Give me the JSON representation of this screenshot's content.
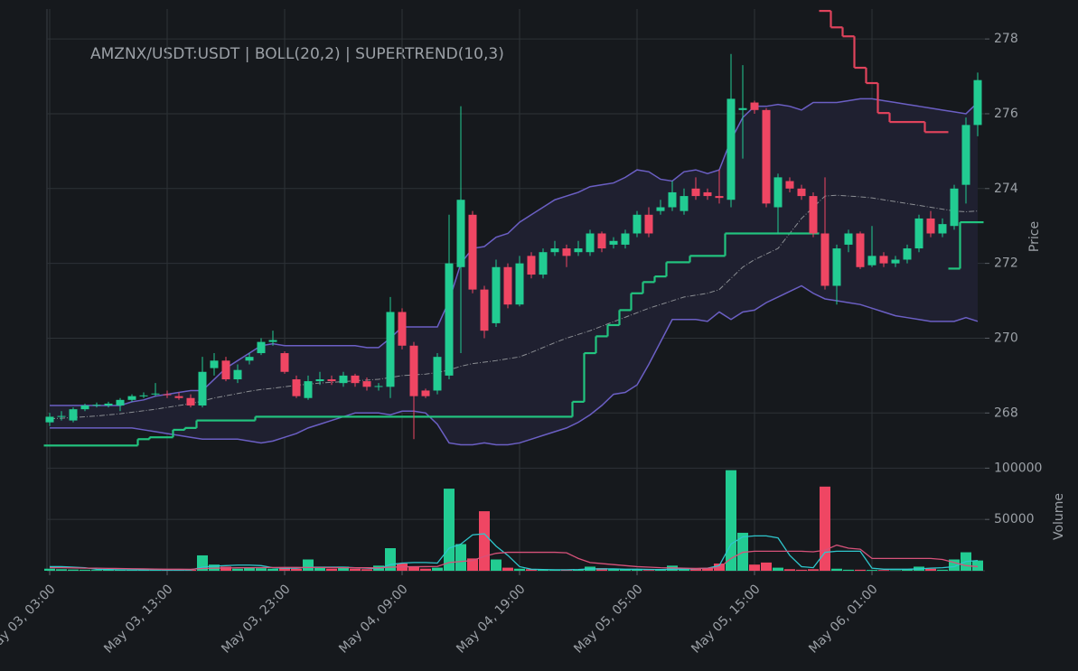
{
  "chart_data": {
    "type": "candlestick",
    "title": "AMZNX/USDT:USDT | BOLL(20,2) | SUPERTREND(10,3)",
    "x": [
      "May 03, 03:00",
      "May 03, 04:00",
      "May 03, 05:00",
      "May 03, 06:00",
      "May 03, 07:00",
      "May 03, 08:00",
      "May 03, 09:00",
      "May 03, 10:00",
      "May 03, 11:00",
      "May 03, 12:00",
      "May 03, 13:00",
      "May 03, 14:00",
      "May 03, 15:00",
      "May 03, 16:00",
      "May 03, 17:00",
      "May 03, 18:00",
      "May 03, 19:00",
      "May 03, 20:00",
      "May 03, 21:00",
      "May 03, 22:00",
      "May 03, 23:00",
      "May 04, 00:00",
      "May 04, 01:00",
      "May 04, 02:00",
      "May 04, 03:00",
      "May 04, 04:00",
      "May 04, 05:00",
      "May 04, 06:00",
      "May 04, 07:00",
      "May 04, 08:00",
      "May 04, 09:00",
      "May 04, 10:00",
      "May 04, 11:00",
      "May 04, 12:00",
      "May 04, 13:00",
      "May 04, 14:00",
      "May 04, 15:00",
      "May 04, 16:00",
      "May 04, 17:00",
      "May 04, 18:00",
      "May 04, 19:00",
      "May 04, 20:00",
      "May 04, 21:00",
      "May 04, 22:00",
      "May 04, 23:00",
      "May 05, 00:00",
      "May 05, 01:00",
      "May 05, 02:00",
      "May 05, 03:00",
      "May 05, 04:00",
      "May 05, 05:00",
      "May 05, 06:00",
      "May 05, 07:00",
      "May 05, 08:00",
      "May 05, 09:00",
      "May 05, 10:00",
      "May 05, 11:00",
      "May 05, 12:00",
      "May 05, 13:00",
      "May 05, 14:00",
      "May 05, 15:00",
      "May 05, 16:00",
      "May 05, 17:00",
      "May 05, 18:00",
      "May 05, 19:00",
      "May 05, 20:00",
      "May 05, 21:00",
      "May 05, 22:00",
      "May 05, 23:00",
      "May 06, 00:00",
      "May 06, 01:00",
      "May 06, 02:00",
      "May 06, 03:00",
      "May 06, 04:00",
      "May 06, 05:00",
      "May 06, 06:00",
      "May 06, 07:00",
      "May 06, 08:00",
      "May 06, 09:00",
      "May 06, 10:00"
    ],
    "xticks": [
      "May 03, 03:00",
      "May 03, 13:00",
      "May 03, 23:00",
      "May 04, 09:00",
      "May 04, 19:00",
      "May 05, 05:00",
      "May 05, 15:00",
      "May 06, 01:00"
    ],
    "candles": {
      "open": [
        267.75,
        267.9,
        267.8,
        268.1,
        268.2,
        268.2,
        268.2,
        268.35,
        268.45,
        268.5,
        268.5,
        268.45,
        268.4,
        268.2,
        269.2,
        269.4,
        268.9,
        269.4,
        269.6,
        269.9,
        269.6,
        268.9,
        268.4,
        268.85,
        268.9,
        268.8,
        269.0,
        268.85,
        268.7,
        268.7,
        270.7,
        269.8,
        268.6,
        268.6,
        269.0,
        271.9,
        273.3,
        271.3,
        270.4,
        271.9,
        270.9,
        272.2,
        271.7,
        272.3,
        272.4,
        272.3,
        272.3,
        272.8,
        272.5,
        272.5,
        272.8,
        273.3,
        273.4,
        273.5,
        273.4,
        274.0,
        273.9,
        273.8,
        273.7,
        276.1,
        276.3,
        276.1,
        273.5,
        274.2,
        274.0,
        273.8,
        272.8,
        271.4,
        272.5,
        272.8,
        271.95,
        272.2,
        272.0,
        272.1,
        272.4,
        273.2,
        272.8,
        273.0,
        274.1,
        275.7
      ],
      "high": [
        268.0,
        268.05,
        268.15,
        268.25,
        268.28,
        268.3,
        268.4,
        268.5,
        268.55,
        268.8,
        268.6,
        268.55,
        268.5,
        269.5,
        269.6,
        269.5,
        269.3,
        269.6,
        270.0,
        270.2,
        269.65,
        269.0,
        269.0,
        269.1,
        269.0,
        269.1,
        269.05,
        268.95,
        268.8,
        271.1,
        270.8,
        269.9,
        268.65,
        269.6,
        273.3,
        276.2,
        273.4,
        271.4,
        272.1,
        272.0,
        272.2,
        272.3,
        272.4,
        272.6,
        272.5,
        272.6,
        272.9,
        272.85,
        272.7,
        272.9,
        273.4,
        273.5,
        273.7,
        274.2,
        274.0,
        274.3,
        274.0,
        274.5,
        277.6,
        277.3,
        276.35,
        276.15,
        274.4,
        274.3,
        274.1,
        273.9,
        274.3,
        272.5,
        272.9,
        272.85,
        273.0,
        272.3,
        272.2,
        272.5,
        273.3,
        273.4,
        273.2,
        274.1,
        275.9,
        277.1
      ],
      "low": [
        267.65,
        267.8,
        267.75,
        268.05,
        268.15,
        268.15,
        268.05,
        268.3,
        268.4,
        268.45,
        268.4,
        268.35,
        268.15,
        268.15,
        269.0,
        268.85,
        268.8,
        269.3,
        269.55,
        269.8,
        269.05,
        268.4,
        268.35,
        268.75,
        268.75,
        268.7,
        268.7,
        268.6,
        268.6,
        268.4,
        269.7,
        267.3,
        268.4,
        268.5,
        268.9,
        269.6,
        271.2,
        270.0,
        270.3,
        270.8,
        270.85,
        271.6,
        271.6,
        272.2,
        271.9,
        272.2,
        272.2,
        272.3,
        272.4,
        272.4,
        272.7,
        272.7,
        273.3,
        273.4,
        273.3,
        273.7,
        273.7,
        273.6,
        273.5,
        274.8,
        276.0,
        273.5,
        272.8,
        273.9,
        273.7,
        272.7,
        271.3,
        270.9,
        272.3,
        271.85,
        271.9,
        271.9,
        271.9,
        272.0,
        272.3,
        272.7,
        272.7,
        272.9,
        273.6,
        275.4
      ],
      "close": [
        267.9,
        267.92,
        268.1,
        268.2,
        268.22,
        268.25,
        268.35,
        268.45,
        268.47,
        268.52,
        268.48,
        268.4,
        268.2,
        269.1,
        269.4,
        268.9,
        269.15,
        269.5,
        269.9,
        269.95,
        269.1,
        268.45,
        268.85,
        268.9,
        268.85,
        269.0,
        268.8,
        268.7,
        268.72,
        270.7,
        269.8,
        268.45,
        268.45,
        269.5,
        272.0,
        273.7,
        271.3,
        270.2,
        271.9,
        270.9,
        272.0,
        271.7,
        272.3,
        272.4,
        272.2,
        272.4,
        272.8,
        272.4,
        272.6,
        272.8,
        273.3,
        272.8,
        273.5,
        273.9,
        273.8,
        273.8,
        273.8,
        273.75,
        276.4,
        276.15,
        276.1,
        273.6,
        274.3,
        274.0,
        273.8,
        272.8,
        271.4,
        272.4,
        272.8,
        271.9,
        272.2,
        272.0,
        272.1,
        272.4,
        273.2,
        272.8,
        273.05,
        274.0,
        275.7,
        276.9
      ],
      "up_color": "#22cc92",
      "down_color": "#ef4663"
    },
    "ylim": [
      266.8,
      278.8
    ],
    "yticks": [
      268,
      270,
      272,
      274,
      276,
      278
    ],
    "ylabel": "Price",
    "bollinger": {
      "upper": [
        268.2,
        268.2,
        268.2,
        268.2,
        268.2,
        268.2,
        268.2,
        268.3,
        268.35,
        268.45,
        268.5,
        268.55,
        268.6,
        268.6,
        268.9,
        269.2,
        269.4,
        269.6,
        269.8,
        269.85,
        269.8,
        269.8,
        269.8,
        269.8,
        269.8,
        269.8,
        269.8,
        269.75,
        269.75,
        270.0,
        270.3,
        270.3,
        270.3,
        270.3,
        271.0,
        272.0,
        272.4,
        272.45,
        272.7,
        272.8,
        273.1,
        273.3,
        273.5,
        273.7,
        273.8,
        273.9,
        274.05,
        274.1,
        274.15,
        274.3,
        274.5,
        274.45,
        274.25,
        274.2,
        274.45,
        274.5,
        274.4,
        274.5,
        275.3,
        275.9,
        276.2,
        276.2,
        276.25,
        276.2,
        276.1,
        276.3,
        276.3,
        276.3,
        276.35,
        276.4,
        276.4,
        276.35,
        276.3,
        276.25,
        276.2,
        276.15,
        276.1,
        276.05,
        276.0,
        276.3
      ],
      "middle": [
        267.85,
        267.86,
        267.88,
        267.9,
        267.92,
        267.95,
        267.98,
        268.02,
        268.06,
        268.1,
        268.15,
        268.2,
        268.25,
        268.32,
        268.4,
        268.46,
        268.52,
        268.58,
        268.63,
        268.66,
        268.7,
        268.74,
        268.77,
        268.8,
        268.82,
        268.84,
        268.86,
        268.88,
        268.9,
        268.95,
        269.0,
        269.02,
        269.04,
        269.08,
        269.15,
        269.25,
        269.32,
        269.36,
        269.4,
        269.45,
        269.5,
        269.62,
        269.75,
        269.88,
        270.0,
        270.1,
        270.2,
        270.32,
        270.44,
        270.56,
        270.68,
        270.8,
        270.9,
        271.0,
        271.1,
        271.15,
        271.2,
        271.3,
        271.6,
        271.9,
        272.1,
        272.25,
        272.4,
        272.8,
        273.2,
        273.5,
        273.8,
        273.82,
        273.8,
        273.78,
        273.75,
        273.7,
        273.65,
        273.6,
        273.55,
        273.5,
        273.45,
        273.4,
        273.38,
        273.4
      ],
      "lower": [
        267.6,
        267.6,
        267.6,
        267.6,
        267.6,
        267.6,
        267.6,
        267.6,
        267.55,
        267.5,
        267.45,
        267.4,
        267.35,
        267.3,
        267.3,
        267.3,
        267.3,
        267.25,
        267.2,
        267.25,
        267.35,
        267.45,
        267.6,
        267.7,
        267.8,
        267.9,
        268.0,
        268.0,
        268.0,
        267.95,
        268.05,
        268.05,
        268.0,
        267.7,
        267.2,
        267.15,
        267.15,
        267.2,
        267.15,
        267.15,
        267.2,
        267.3,
        267.4,
        267.5,
        267.6,
        267.75,
        267.95,
        268.2,
        268.5,
        268.55,
        268.75,
        269.3,
        269.9,
        270.5,
        270.5,
        270.5,
        270.45,
        270.7,
        270.5,
        270.7,
        270.75,
        270.95,
        271.1,
        271.25,
        271.4,
        271.2,
        271.05,
        271.0,
        270.95,
        270.9,
        270.8,
        270.7,
        270.6,
        270.55,
        270.5,
        270.45,
        270.45,
        270.45,
        270.55,
        270.45
      ],
      "color": "#6b5fc4",
      "middle_color": "#8a8d92",
      "fill": "#1f2030"
    },
    "supertrend": {
      "up": [
        267.13,
        267.13,
        267.13,
        267.13,
        267.13,
        267.13,
        267.13,
        267.13,
        267.3,
        267.35,
        267.35,
        267.55,
        267.6,
        267.8,
        267.8,
        267.8,
        267.8,
        267.8,
        267.9,
        267.9,
        267.9,
        267.9,
        267.9,
        267.9,
        267.9,
        267.9,
        267.9,
        267.9,
        267.9,
        267.9,
        267.9,
        267.9,
        267.9,
        267.9,
        267.9,
        267.9,
        267.9,
        267.9,
        267.9,
        267.9,
        267.9,
        267.9,
        267.9,
        267.9,
        267.9,
        268.3,
        269.6,
        270.05,
        270.35,
        270.75,
        271.2,
        271.5,
        271.65,
        272.03,
        272.03,
        272.2,
        272.2,
        272.2,
        272.8,
        272.8,
        272.8,
        272.8,
        272.8,
        272.8,
        272.8,
        272.8,
        null,
        null,
        null,
        null,
        null,
        null,
        null,
        null,
        null,
        null,
        null,
        271.86,
        273.1,
        273.1
      ],
      "down": [
        null,
        null,
        null,
        null,
        null,
        null,
        null,
        null,
        null,
        null,
        null,
        null,
        null,
        null,
        null,
        null,
        null,
        null,
        null,
        null,
        null,
        null,
        null,
        null,
        null,
        null,
        null,
        null,
        null,
        null,
        null,
        null,
        null,
        null,
        null,
        null,
        null,
        null,
        null,
        null,
        null,
        null,
        null,
        null,
        null,
        null,
        null,
        null,
        null,
        null,
        null,
        null,
        null,
        null,
        null,
        null,
        null,
        null,
        null,
        null,
        null,
        null,
        null,
        null,
        null,
        null,
        278.75,
        278.31,
        278.07,
        277.23,
        276.82,
        276.02,
        275.78,
        275.78,
        275.78,
        275.51,
        275.51,
        null,
        null,
        null
      ],
      "up_color": "#22c47f",
      "down_color": "#e0435c"
    },
    "volume": {
      "values": [
        2000,
        1500,
        1200,
        1000,
        800,
        1500,
        1000,
        800,
        600,
        500,
        800,
        600,
        1000,
        15000,
        6000,
        4000,
        2000,
        3000,
        2500,
        2000,
        2500,
        2000,
        11000,
        3000,
        2000,
        4000,
        2000,
        1500,
        5000,
        22000,
        7000,
        4000,
        2000,
        3000,
        80000,
        26000,
        12000,
        58000,
        11000,
        3000,
        2000,
        1500,
        1000,
        800,
        700,
        1000,
        4000,
        2500,
        1500,
        1500,
        1000,
        700,
        1000,
        5000,
        1500,
        2000,
        2500,
        7000,
        98000,
        37000,
        6000,
        8000,
        3000,
        1500,
        1000,
        1500,
        82000,
        2000,
        1000,
        1000,
        800,
        700,
        500,
        1500,
        4000,
        2000,
        1000,
        11000,
        18000,
        10000
      ],
      "ylim": [
        0,
        110000
      ],
      "yticks": [
        50000,
        100000
      ],
      "ylabel": "Volume"
    },
    "volume_ma": [
      {
        "color": "#2fc6cc",
        "values": [
          4000,
          4000,
          3500,
          3000,
          1500,
          1200,
          1000,
          900,
          800,
          800,
          700,
          700,
          800,
          3500,
          4500,
          5000,
          5500,
          5500,
          5000,
          3000,
          2500,
          2500,
          3500,
          3500,
          3500,
          3500,
          3000,
          2500,
          2000,
          6000,
          7500,
          8000,
          8000,
          7500,
          22000,
          26000,
          35000,
          36000,
          24000,
          15000,
          4000,
          1500,
          1200,
          1000,
          1000,
          1200,
          1800,
          1800,
          1800,
          1500,
          1500,
          1300,
          1200,
          1500,
          1700,
          2000,
          2500,
          5000,
          26000,
          33000,
          34000,
          34000,
          32000,
          15000,
          4000,
          3000,
          18000,
          19000,
          19000,
          19000,
          2500,
          1500,
          1500,
          1500,
          1800,
          2500,
          3000,
          4000,
          9000,
          10000
        ]
      },
      {
        "color": "#d6527a",
        "values": [
          3000,
          3000,
          2800,
          2500,
          2500,
          2300,
          2200,
          2000,
          1800,
          1600,
          1500,
          1500,
          1400,
          2200,
          2500,
          2700,
          2900,
          3000,
          3100,
          3200,
          3300,
          3300,
          3200,
          3200,
          3100,
          3000,
          3000,
          2900,
          2800,
          3500,
          3800,
          3900,
          4000,
          4200,
          8000,
          9000,
          10000,
          14000,
          17000,
          18000,
          18000,
          18000,
          18000,
          18000,
          17500,
          12000,
          8000,
          7000,
          6000,
          5000,
          4000,
          3500,
          3000,
          2800,
          2500,
          2300,
          2500,
          3000,
          12000,
          18000,
          19000,
          19000,
          19000,
          19000,
          19000,
          18500,
          20000,
          25000,
          22000,
          21000,
          12000,
          12000,
          12000,
          12000,
          12000,
          12000,
          11000,
          8000,
          5000,
          4000
        ]
      }
    ],
    "grid": true
  }
}
